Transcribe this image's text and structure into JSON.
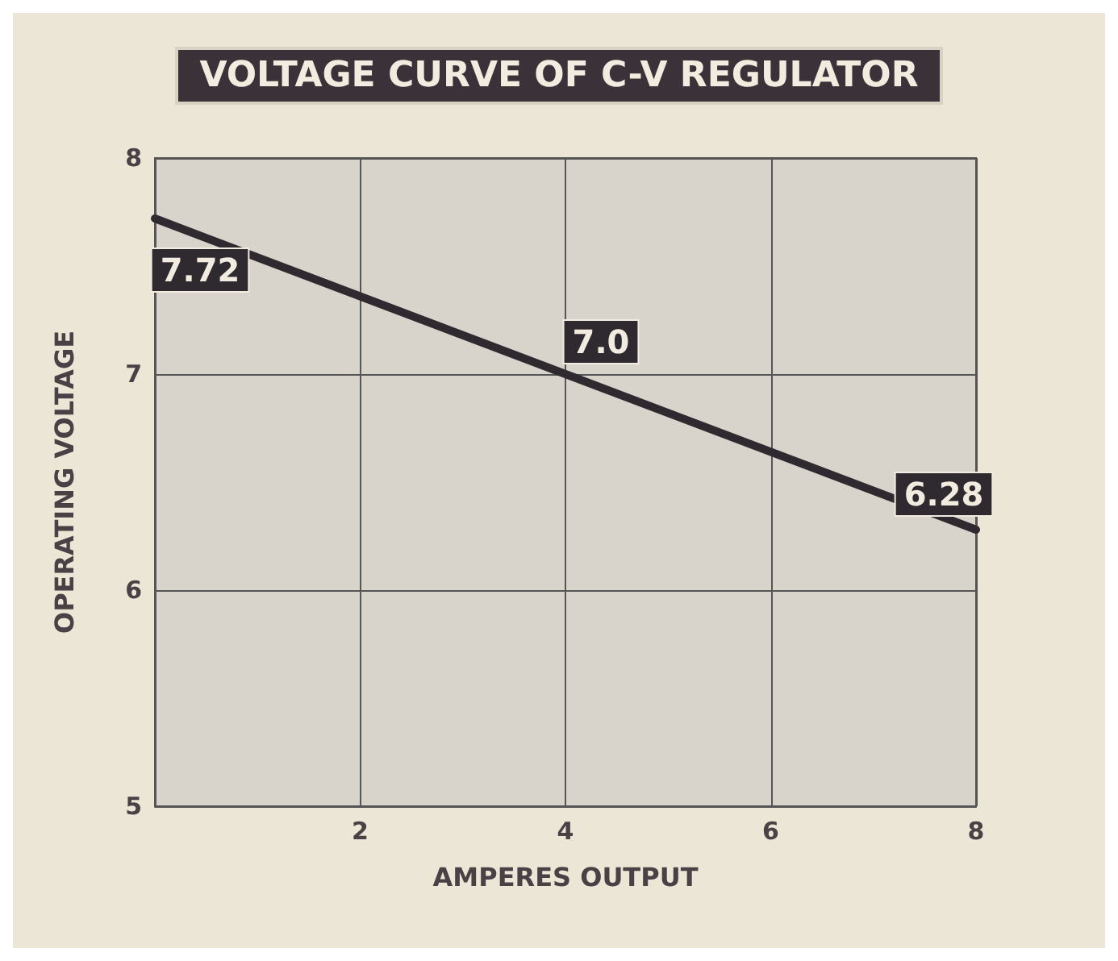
{
  "chart_data": {
    "type": "line",
    "title": "VOLTAGE CURVE OF C-V REGULATOR",
    "xlabel": "AMPERES OUTPUT",
    "ylabel": "OPERATING VOLTAGE",
    "x": [
      0,
      4,
      8
    ],
    "series": [
      {
        "color": "#2e2a30",
        "values": [
          7.72,
          7.0,
          6.28
        ],
        "value_labels": [
          "7.72",
          "7.0",
          "6.28"
        ]
      }
    ],
    "xlim": [
      0,
      8
    ],
    "xticks": [
      {
        "value": 0,
        "label": null
      },
      2,
      4,
      6,
      8
    ],
    "ylim": [
      5,
      8
    ],
    "yticks": [
      5,
      6,
      7,
      8
    ],
    "grid": true,
    "marker": "none",
    "line_style": "solid"
  }
}
